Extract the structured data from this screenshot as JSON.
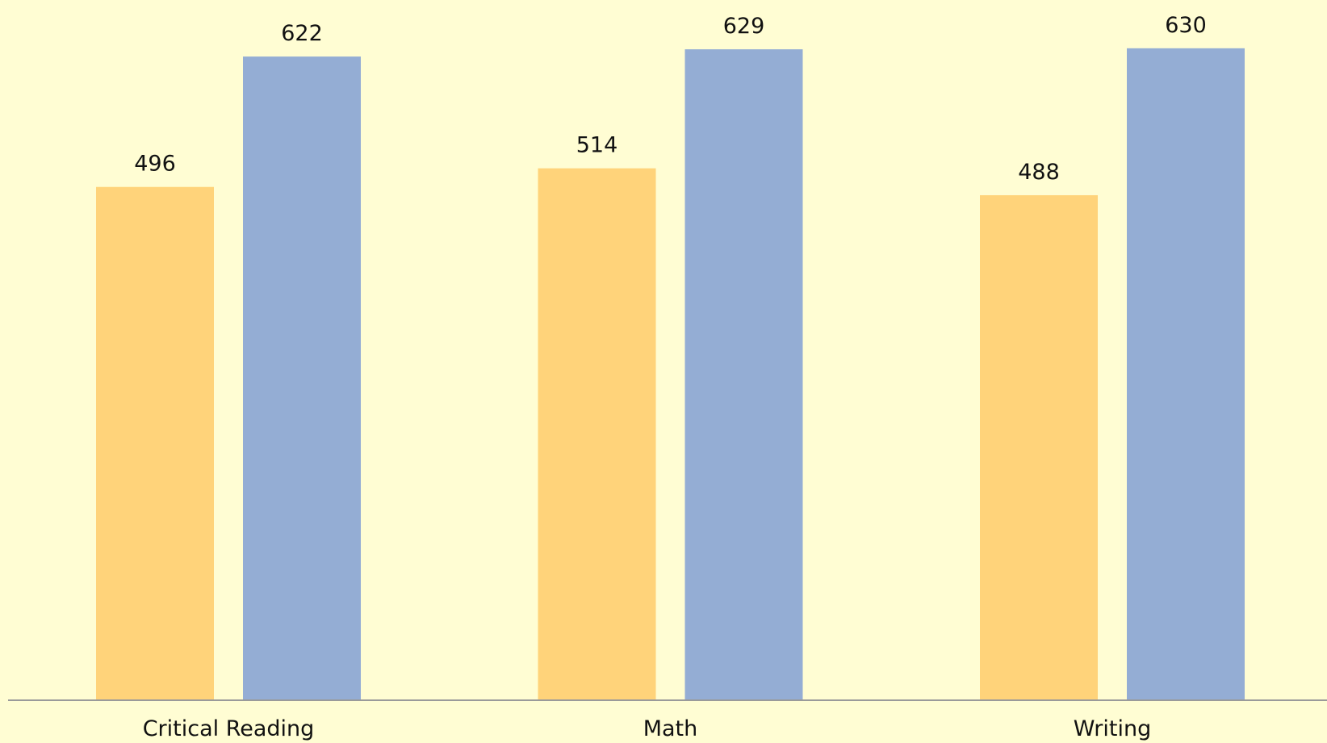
{
  "chart_data": {
    "type": "bar",
    "categories": [
      "Critical Reading",
      "Math",
      "Writing"
    ],
    "series": [
      {
        "values": [
          496,
          514,
          488
        ],
        "color": "#FFD37A"
      },
      {
        "values": [
          622,
          629,
          630
        ],
        "color": "#94ADD4"
      }
    ],
    "ylim": [
      0,
      640
    ],
    "grid": false,
    "legend": "none",
    "show_values": true,
    "title": "",
    "xlabel": "",
    "ylabel": ""
  },
  "colors": {
    "background": "#FFFDD3",
    "axis": "#9A9A9A",
    "text": "#111111"
  }
}
